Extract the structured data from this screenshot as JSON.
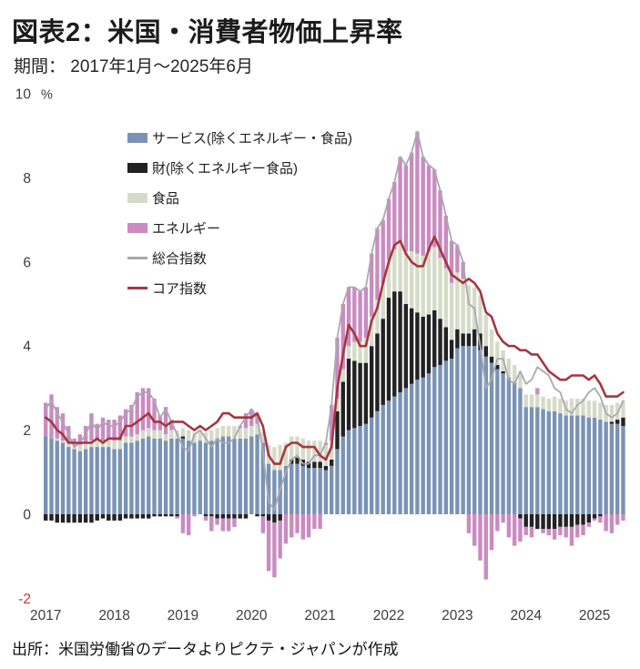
{
  "header": {
    "title": "図表2：米国・消費者物価上昇率",
    "subtitle": "期間： 2017年1月～2025年6月"
  },
  "source": "出所：米国労働省のデータよりピクテ・ジャパンが作成",
  "colors": {
    "services": "#7A93B5",
    "goods": "#222222",
    "food": "#D6DBC8",
    "energy": "#C98BC1",
    "headline": "#A9A9B0",
    "core": "#A6363F",
    "axis_text": "#3D3D3D",
    "negative_tick": "#CC3333"
  },
  "chart_data": {
    "type": "bar",
    "combo": "stacked-bar+line",
    "title": "図表2：米国・消費者物価上昇率",
    "period": "2017年1月～2025年6月",
    "unit": "%",
    "ylim": [
      -2,
      10
    ],
    "yticks": [
      10,
      8,
      6,
      4,
      2,
      0,
      -2
    ],
    "grid": false,
    "legend_position": "upper-left-inside",
    "x_years": [
      2017,
      2018,
      2019,
      2020,
      2021,
      2022,
      2023,
      2024,
      2025
    ],
    "x_monthly_from": "2017-01",
    "x_monthly_to": "2025-06",
    "series": [
      {
        "key": "services",
        "name": "サービス(除くエネルギー・食品)",
        "type": "bar",
        "color": "#7A93B5",
        "values": [
          1.85,
          1.8,
          1.75,
          1.7,
          1.6,
          1.55,
          1.5,
          1.55,
          1.6,
          1.6,
          1.6,
          1.6,
          1.55,
          1.55,
          1.7,
          1.7,
          1.75,
          1.8,
          1.85,
          1.8,
          1.8,
          1.75,
          1.8,
          1.8,
          1.8,
          1.75,
          1.7,
          1.75,
          1.7,
          1.75,
          1.8,
          1.85,
          1.85,
          1.8,
          1.8,
          1.8,
          1.85,
          1.9,
          1.7,
          1.2,
          1.05,
          1.05,
          1.15,
          1.2,
          1.2,
          1.15,
          1.1,
          1.1,
          1.1,
          1.05,
          1.15,
          1.55,
          1.85,
          2.0,
          2.05,
          2.1,
          2.15,
          2.3,
          2.45,
          2.6,
          2.7,
          2.8,
          2.9,
          3.0,
          3.1,
          3.2,
          3.25,
          3.35,
          3.5,
          3.55,
          3.65,
          3.7,
          3.95,
          4.0,
          4.0,
          4.0,
          3.9,
          3.75,
          3.6,
          3.45,
          3.35,
          3.25,
          3.15,
          3.0,
          2.55,
          2.55,
          2.55,
          2.5,
          2.45,
          2.45,
          2.4,
          2.35,
          2.35,
          2.35,
          2.35,
          2.3,
          2.3,
          2.25,
          2.2,
          2.15,
          2.15,
          2.1
        ]
      },
      {
        "key": "goods",
        "name": "財(除くエネルギー食品)",
        "type": "bar",
        "color": "#222222",
        "values": [
          -0.15,
          -0.15,
          -0.2,
          -0.2,
          -0.2,
          -0.2,
          -0.2,
          -0.2,
          -0.2,
          -0.15,
          -0.1,
          -0.15,
          -0.15,
          -0.15,
          -0.1,
          -0.1,
          -0.1,
          -0.1,
          -0.1,
          -0.05,
          -0.05,
          -0.05,
          -0.05,
          -0.05,
          0.05,
          0.0,
          0.0,
          0.0,
          -0.05,
          -0.05,
          -0.1,
          -0.1,
          -0.1,
          -0.1,
          -0.1,
          -0.1,
          0.0,
          -0.05,
          -0.05,
          -0.15,
          -0.2,
          -0.15,
          0.0,
          0.1,
          0.15,
          0.15,
          0.15,
          0.15,
          0.15,
          0.1,
          0.15,
          0.9,
          1.3,
          1.7,
          1.6,
          1.5,
          1.45,
          1.7,
          1.85,
          2.05,
          2.45,
          2.5,
          2.4,
          2.0,
          1.8,
          1.6,
          1.45,
          1.4,
          1.35,
          1.1,
          0.8,
          0.45,
          0.45,
          0.3,
          0.3,
          0.4,
          0.4,
          0.25,
          0.15,
          0.1,
          0.05,
          0.0,
          0.0,
          -0.1,
          -0.3,
          -0.3,
          -0.35,
          -0.35,
          -0.35,
          -0.35,
          -0.3,
          -0.3,
          -0.3,
          -0.25,
          -0.25,
          -0.2,
          -0.1,
          -0.05,
          0.0,
          0.05,
          0.1,
          0.2
        ]
      },
      {
        "key": "food",
        "name": "食品",
        "type": "bar",
        "color": "#D6DBC8",
        "values": [
          0.0,
          0.0,
          0.05,
          0.05,
          0.1,
          0.1,
          0.15,
          0.15,
          0.15,
          0.15,
          0.15,
          0.2,
          0.2,
          0.2,
          0.15,
          0.15,
          0.15,
          0.2,
          0.2,
          0.2,
          0.2,
          0.15,
          0.2,
          0.2,
          0.2,
          0.25,
          0.25,
          0.25,
          0.25,
          0.25,
          0.25,
          0.25,
          0.25,
          0.3,
          0.25,
          0.25,
          0.25,
          0.25,
          0.25,
          0.45,
          0.55,
          0.6,
          0.55,
          0.55,
          0.5,
          0.5,
          0.5,
          0.5,
          0.5,
          0.5,
          0.45,
          0.3,
          0.3,
          0.3,
          0.45,
          0.5,
          0.6,
          0.7,
          0.8,
          0.85,
          0.9,
          1.0,
          1.15,
          1.25,
          1.35,
          1.4,
          1.45,
          1.5,
          1.5,
          1.45,
          1.4,
          1.35,
          1.35,
          1.3,
          1.15,
          1.0,
          0.9,
          0.75,
          0.65,
          0.55,
          0.5,
          0.45,
          0.4,
          0.35,
          0.3,
          0.3,
          0.3,
          0.3,
          0.3,
          0.35,
          0.35,
          0.35,
          0.4,
          0.4,
          0.4,
          0.4,
          0.4,
          0.4,
          0.4,
          0.4,
          0.4,
          0.4
        ]
      },
      {
        "key": "energy",
        "name": "エネルギー",
        "type": "bar",
        "color": "#C98BC1",
        "values": [
          0.8,
          1.05,
          0.75,
          0.65,
          0.4,
          0.15,
          0.25,
          0.4,
          0.65,
          0.4,
          0.55,
          0.45,
          0.5,
          0.6,
          0.65,
          0.75,
          1.0,
          1.0,
          0.95,
          0.75,
          0.35,
          0.65,
          0.25,
          -0.05,
          -0.45,
          -0.5,
          -0.05,
          0.0,
          -0.1,
          -0.35,
          -0.15,
          -0.3,
          -0.3,
          -0.2,
          0.05,
          0.35,
          0.4,
          0.2,
          -0.4,
          -1.2,
          -1.3,
          -0.9,
          -0.7,
          -0.55,
          -0.45,
          -0.6,
          -0.55,
          -0.35,
          -0.35,
          0.05,
          0.85,
          1.45,
          1.55,
          1.4,
          1.3,
          1.2,
          1.2,
          1.5,
          1.7,
          1.5,
          1.45,
          1.6,
          2.05,
          2.05,
          2.35,
          2.9,
          2.35,
          2.05,
          1.85,
          1.6,
          1.25,
          1.0,
          0.65,
          0.4,
          -0.45,
          -0.75,
          -1.1,
          -1.55,
          -0.85,
          -0.4,
          -0.2,
          -0.55,
          -0.75,
          -0.55,
          -0.2,
          -0.25,
          0.15,
          -0.1,
          -0.15,
          -0.25,
          -0.2,
          -0.25,
          -0.45,
          -0.3,
          -0.25,
          -0.1,
          -0.05,
          -0.15,
          -0.4,
          -0.45,
          -0.25,
          -0.15
        ]
      },
      {
        "key": "headline",
        "name": "総合指数",
        "type": "line",
        "color": "#A9A9B0",
        "values": [
          2.5,
          2.7,
          2.4,
          2.2,
          1.9,
          1.6,
          1.7,
          1.9,
          2.2,
          2.0,
          2.2,
          2.1,
          2.1,
          2.2,
          2.4,
          2.5,
          2.8,
          2.9,
          2.9,
          2.7,
          2.3,
          2.5,
          2.2,
          1.9,
          1.6,
          1.5,
          1.9,
          2.0,
          1.8,
          1.6,
          1.8,
          1.7,
          1.7,
          1.8,
          2.1,
          2.3,
          2.5,
          2.3,
          1.5,
          0.3,
          0.1,
          0.6,
          1.0,
          1.3,
          1.4,
          1.2,
          1.2,
          1.4,
          1.4,
          1.7,
          2.6,
          4.2,
          5.0,
          5.4,
          5.4,
          5.3,
          5.4,
          6.2,
          6.8,
          7.0,
          7.5,
          7.9,
          8.5,
          8.3,
          8.6,
          9.1,
          8.5,
          8.3,
          8.2,
          7.7,
          7.1,
          6.5,
          6.4,
          6.0,
          5.0,
          4.9,
          4.0,
          3.0,
          3.2,
          3.7,
          3.7,
          3.2,
          3.1,
          3.4,
          3.1,
          3.2,
          3.5,
          3.4,
          3.3,
          3.0,
          2.9,
          2.5,
          2.4,
          2.6,
          2.7,
          2.9,
          3.0,
          2.8,
          2.4,
          2.3,
          2.4,
          2.7
        ]
      },
      {
        "key": "core",
        "name": "コア指数",
        "type": "line",
        "color": "#A6363F",
        "values": [
          2.3,
          2.2,
          2.0,
          1.9,
          1.7,
          1.7,
          1.7,
          1.7,
          1.7,
          1.8,
          1.7,
          1.8,
          1.8,
          1.8,
          2.1,
          2.1,
          2.2,
          2.3,
          2.4,
          2.2,
          2.2,
          2.1,
          2.2,
          2.2,
          2.2,
          2.1,
          2.0,
          2.1,
          2.0,
          2.1,
          2.2,
          2.4,
          2.4,
          2.3,
          2.3,
          2.3,
          2.3,
          2.4,
          2.1,
          1.4,
          1.2,
          1.2,
          1.6,
          1.7,
          1.7,
          1.6,
          1.6,
          1.6,
          1.4,
          1.3,
          1.6,
          3.0,
          3.8,
          4.5,
          4.3,
          4.0,
          4.0,
          4.6,
          4.9,
          5.5,
          6.0,
          6.4,
          6.5,
          6.2,
          6.0,
          5.9,
          5.9,
          6.3,
          6.6,
          6.3,
          6.0,
          5.7,
          5.6,
          5.5,
          5.6,
          5.5,
          5.3,
          4.8,
          4.7,
          4.3,
          4.1,
          4.0,
          4.0,
          3.9,
          3.9,
          3.8,
          3.8,
          3.6,
          3.4,
          3.3,
          3.2,
          3.2,
          3.3,
          3.3,
          3.3,
          3.2,
          3.3,
          3.1,
          2.8,
          2.8,
          2.8,
          2.9
        ]
      }
    ]
  }
}
